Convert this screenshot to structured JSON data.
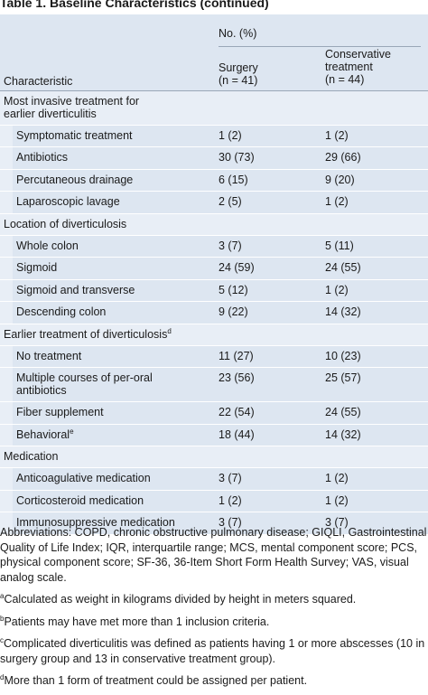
{
  "title": "Table 1. Baseline Characteristics (continued)",
  "header": {
    "group_label": "No. (%)",
    "col0": "Characteristic",
    "col1_line1": "Surgery",
    "col1_line2": "(n = 41)",
    "col2_line1": "Conservative",
    "col2_line2": "treatment",
    "col2_line3": "(n = 44)"
  },
  "rows": [
    {
      "type": "section",
      "label": "Most invasive treatment for",
      "label2": "earlier diverticulitis",
      "c1": "",
      "c2": ""
    },
    {
      "type": "sub",
      "label": "Symptomatic treatment",
      "c1": "1 (2)",
      "c2": "1 (2)"
    },
    {
      "type": "sub",
      "label": "Antibiotics",
      "c1": "30 (73)",
      "c2": "29 (66)"
    },
    {
      "type": "sub",
      "label": "Percutaneous drainage",
      "c1": "6 (15)",
      "c2": "9 (20)"
    },
    {
      "type": "sub",
      "label": "Laparoscopic lavage",
      "c1": "2 (5)",
      "c2": "1 (2)"
    },
    {
      "type": "section",
      "label": "Location of diverticulosis",
      "c1": "",
      "c2": ""
    },
    {
      "type": "sub",
      "label": "Whole colon",
      "c1": "3 (7)",
      "c2": "5 (11)"
    },
    {
      "type": "sub",
      "label": "Sigmoid",
      "c1": "24 (59)",
      "c2": "24 (55)"
    },
    {
      "type": "sub",
      "label": "Sigmoid and transverse",
      "c1": "5 (12)",
      "c2": "1 (2)"
    },
    {
      "type": "sub",
      "label": "Descending colon",
      "c1": "9 (22)",
      "c2": "14 (32)"
    },
    {
      "type": "section",
      "label": "Earlier treatment of diverticulosis",
      "sup": "d",
      "c1": "",
      "c2": ""
    },
    {
      "type": "sub",
      "label": "No treatment",
      "c1": "11 (27)",
      "c2": "10 (23)"
    },
    {
      "type": "sub",
      "label": "Multiple courses of per-oral",
      "label2": "antibiotics",
      "c1": "23 (56)",
      "c2": "25 (57)"
    },
    {
      "type": "sub",
      "label": "Fiber supplement",
      "c1": "22 (54)",
      "c2": "24 (55)"
    },
    {
      "type": "sub",
      "label": "Behavioral",
      "sup": "e",
      "c1": "18 (44)",
      "c2": "14 (32)"
    },
    {
      "type": "section",
      "label": "Medication",
      "c1": "",
      "c2": ""
    },
    {
      "type": "sub",
      "label": "Anticoagulative medication",
      "c1": "3 (7)",
      "c2": "1 (2)"
    },
    {
      "type": "sub",
      "label": "Corticosteroid medication",
      "c1": "1 (2)",
      "c2": "1 (2)"
    },
    {
      "type": "sub",
      "label": "Immunosuppressive medication",
      "c1": "3 (7)",
      "c2": "3 (7)"
    }
  ],
  "footnotes": {
    "abbrev": "Abbreviations: COPD, chronic obstructive pulmonary disease; GIQLI, Gastrointestinal Quality of Life Index; IQR, interquartile range; MCS, mental component score; PCS, physical component score; SF-36, 36-Item Short Form Health Survey; VAS, visual analog scale.",
    "a": "Calculated as weight in kilograms divided by height in meters squared.",
    "b": "Patients may have met more than 1 inclusion criteria.",
    "c": "Complicated diverticulitis was defined as patients having 1 or more abscesses (10 in surgery group and 13 in conservative treatment group).",
    "d": "More than 1 form of treatment could be assigned per patient.",
    "marks": {
      "a": "a",
      "b": "b",
      "c": "c",
      "d": "d"
    }
  }
}
